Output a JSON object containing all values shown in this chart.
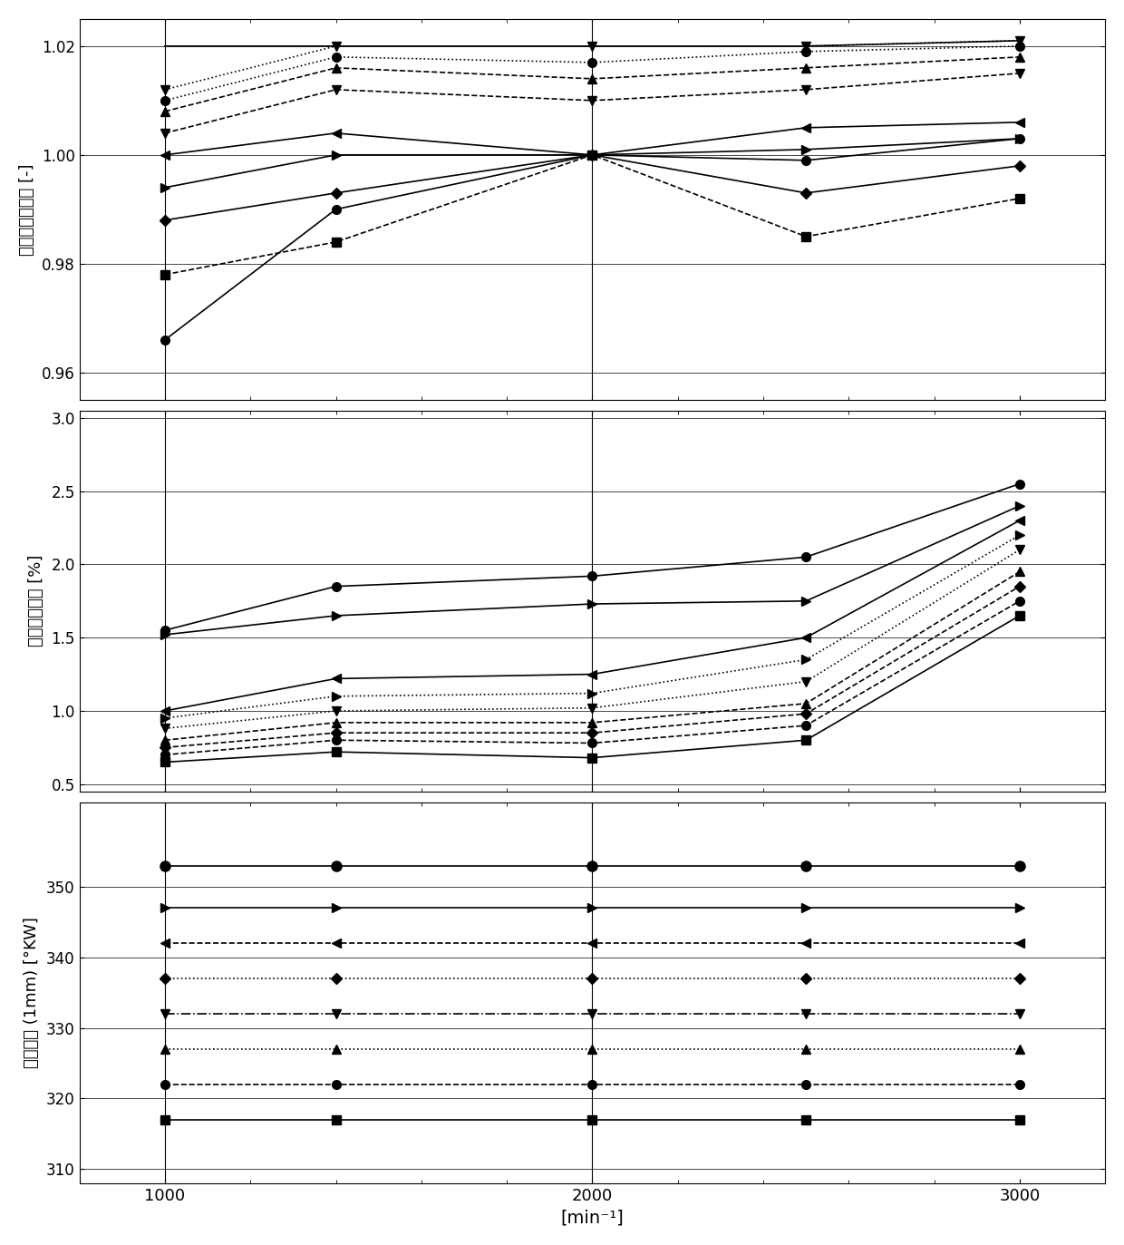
{
  "xlabel": "[min⁻¹]",
  "x_ticks": [
    1000,
    2000,
    3000
  ],
  "x_lim": [
    800,
    3200
  ],
  "x_data": [
    1000,
    1400,
    2000,
    2500,
    3000
  ],
  "panel1_ylabel": "收集器充气程度 [-]",
  "panel1_ylim": [
    0.955,
    1.025
  ],
  "panel1_yticks": [
    0.96,
    0.98,
    1.0,
    1.02
  ],
  "panel1_series": [
    {
      "y": [
        0.966,
        0.99,
        1.0,
        0.999,
        1.003
      ],
      "style": "solid",
      "marker": "o",
      "ms": 7
    },
    {
      "y": [
        0.978,
        0.984,
        1.0,
        0.985,
        0.992
      ],
      "style": "dashed",
      "marker": "s",
      "ms": 7
    },
    {
      "y": [
        0.988,
        0.993,
        1.0,
        0.993,
        0.998
      ],
      "style": "solid",
      "marker": "D",
      "ms": 6
    },
    {
      "y": [
        0.994,
        1.0,
        1.0,
        1.001,
        1.003
      ],
      "style": "solid",
      "marker": ">",
      "ms": 7
    },
    {
      "y": [
        1.0,
        1.004,
        1.0,
        1.005,
        1.006
      ],
      "style": "solid",
      "marker": "<",
      "ms": 7
    },
    {
      "y": [
        1.004,
        1.012,
        1.01,
        1.012,
        1.015
      ],
      "style": "dashed",
      "marker": "v",
      "ms": 7
    },
    {
      "y": [
        1.008,
        1.016,
        1.014,
        1.016,
        1.018
      ],
      "style": "dashed",
      "marker": "^",
      "ms": 7
    },
    {
      "y": [
        1.01,
        1.018,
        1.017,
        1.019,
        1.02
      ],
      "style": "dotted",
      "marker": "o",
      "ms": 7
    },
    {
      "y": [
        1.012,
        1.02,
        1.02,
        1.02,
        1.021
      ],
      "style": "dotted",
      "marker": "v",
      "ms": 7
    },
    {
      "y": [
        1.02,
        1.02,
        1.02,
        1.02,
        1.021
      ],
      "style": "solid",
      "marker": "None",
      "ms": 0
    }
  ],
  "panel2_ylabel": "残余废气含量 [%]",
  "panel2_ylim": [
    0.45,
    3.05
  ],
  "panel2_yticks": [
    0.5,
    1.0,
    1.5,
    2.0,
    2.5,
    3.0
  ],
  "panel2_series": [
    {
      "y": [
        0.65,
        0.72,
        0.68,
        0.8,
        1.65
      ],
      "style": "solid",
      "marker": "s",
      "ms": 7
    },
    {
      "y": [
        0.7,
        0.8,
        0.78,
        0.9,
        1.75
      ],
      "style": "dashed",
      "marker": "o",
      "ms": 7
    },
    {
      "y": [
        0.75,
        0.85,
        0.85,
        0.98,
        1.85
      ],
      "style": "dashed",
      "marker": "D",
      "ms": 6
    },
    {
      "y": [
        0.8,
        0.92,
        0.92,
        1.05,
        1.95
      ],
      "style": "dashed",
      "marker": "^",
      "ms": 7
    },
    {
      "y": [
        0.88,
        1.0,
        1.02,
        1.2,
        2.1
      ],
      "style": "dotted",
      "marker": "v",
      "ms": 7
    },
    {
      "y": [
        0.95,
        1.1,
        1.12,
        1.35,
        2.2
      ],
      "style": "dotted",
      "marker": ">",
      "ms": 7
    },
    {
      "y": [
        1.0,
        1.22,
        1.25,
        1.5,
        2.3
      ],
      "style": "solid",
      "marker": "<",
      "ms": 7
    },
    {
      "y": [
        1.52,
        1.65,
        1.73,
        1.75,
        2.4
      ],
      "style": "solid",
      "marker": ">",
      "ms": 7
    },
    {
      "y": [
        1.55,
        1.85,
        1.92,
        2.05,
        2.55
      ],
      "style": "solid",
      "marker": "o",
      "ms": 7
    }
  ],
  "panel3_ylabel": "进气打开 (1mm) [°KW]",
  "panel3_ylim": [
    308,
    362
  ],
  "panel3_yticks": [
    310,
    320,
    330,
    340,
    350
  ],
  "panel3_series": [
    {
      "y": [
        317,
        317,
        317,
        317,
        317
      ],
      "style": "solid",
      "marker": "s",
      "ms": 7
    },
    {
      "y": [
        322,
        322,
        322,
        322,
        322
      ],
      "style": "dashed",
      "marker": "o",
      "ms": 7
    },
    {
      "y": [
        327,
        327,
        327,
        327,
        327
      ],
      "style": "dotted",
      "marker": "^",
      "ms": 7
    },
    {
      "y": [
        332,
        332,
        332,
        332,
        332
      ],
      "style": "dashdot",
      "marker": "v",
      "ms": 7
    },
    {
      "y": [
        337,
        337,
        337,
        337,
        337
      ],
      "style": "dotted",
      "marker": "D",
      "ms": 6
    },
    {
      "y": [
        342,
        342,
        342,
        342,
        342
      ],
      "style": "dashed",
      "marker": "<",
      "ms": 7
    },
    {
      "y": [
        347,
        347,
        347,
        347,
        347
      ],
      "style": "solid",
      "marker": ">",
      "ms": 7
    },
    {
      "y": [
        353,
        353,
        353,
        353,
        353
      ],
      "style": "solid",
      "marker": "o",
      "ms": 8
    }
  ],
  "vlines_x": [
    1000,
    2000
  ],
  "color": "black",
  "bg_color": "white"
}
